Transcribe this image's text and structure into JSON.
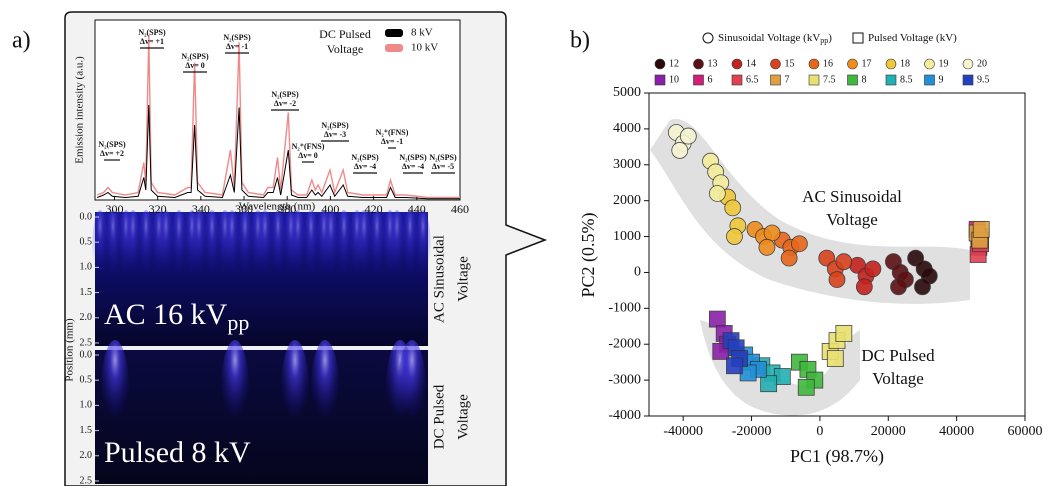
{
  "panel_labels": [
    "a)",
    "b)"
  ],
  "chart_data": [
    {
      "type": "line",
      "xlabel": "Wavelength (nm)",
      "ylabel": "Emission intensity (a.u.)",
      "legend_title": [
        "DC Pulsed",
        "Voltage"
      ],
      "x": [
        292,
        295,
        297,
        299,
        305,
        311,
        313.6,
        314.5,
        315.9,
        317,
        320,
        328,
        333.9,
        335.5,
        337.1,
        338.5,
        342,
        350,
        353.7,
        355.5,
        357.7,
        359,
        362,
        369,
        371,
        373.5,
        375.5,
        377,
        380.5,
        382,
        385,
        389,
        391.4,
        393,
        394.3,
        396,
        399.8,
        402,
        405.9,
        408,
        415,
        420,
        426,
        427.8,
        430,
        435,
        445,
        460
      ],
      "series": [
        {
          "name": "8 kV",
          "color": "#000000",
          "values": [
            1,
            2,
            3,
            1.5,
            1,
            1.5,
            9,
            4,
            38,
            4,
            1.5,
            1,
            3,
            3,
            30,
            4,
            1.5,
            1,
            10,
            3,
            37,
            4,
            1.5,
            1,
            3,
            3,
            9,
            2,
            20,
            2,
            1,
            1,
            4,
            2,
            3,
            1.5,
            6,
            1.5,
            6,
            1.5,
            1,
            1,
            1,
            5,
            1,
            1,
            0.5,
            0.5
          ]
        },
        {
          "name": "10 kV",
          "color": "#f08a8a",
          "values": [
            2,
            3,
            5,
            3,
            2,
            3,
            15,
            7,
            66,
            7,
            3,
            2,
            5,
            5,
            55,
            7,
            3,
            2,
            20,
            5,
            63,
            7,
            3,
            2,
            5,
            5,
            17,
            4,
            35,
            4,
            2,
            2,
            8,
            4,
            6,
            3,
            12,
            3,
            12,
            3,
            2,
            2,
            2,
            8,
            2,
            2,
            1,
            1
          ]
        }
      ],
      "xlim": [
        291,
        460
      ],
      "xticks": [
        300,
        320,
        340,
        360,
        380,
        400,
        420,
        440,
        460
      ],
      "ylim": [
        0,
        72
      ],
      "annotations": [
        {
          "species": "N₂(SPS)",
          "transition": "Δv= +2"
        },
        {
          "species": "N₂(SPS)",
          "transition": "Δv= +1"
        },
        {
          "species": "N₂(SPS)",
          "transition": "Δv= 0"
        },
        {
          "species": "N₂(SPS)",
          "transition": "Δv= -1"
        },
        {
          "species": "N₂(SPS)",
          "transition": "Δv= -2"
        },
        {
          "species": "N₂⁺(FNS)",
          "transition": "Δv= 0"
        },
        {
          "species": "N₂(SPS)",
          "transition": "Δv= -3"
        },
        {
          "species": "N₂(SPS)",
          "transition": "Δv= -4"
        },
        {
          "species": "N₂⁺(FNS)",
          "transition": "Δv= -1"
        },
        {
          "species": "N₂(SPS)",
          "transition": "Δv= -4"
        },
        {
          "species": "N₂(SPS)",
          "transition": "Δv= -5"
        }
      ]
    },
    {
      "type": "image",
      "ylabel": "Position (mm)",
      "ylim": [
        0,
        2.6
      ],
      "yticks": [
        {
          "value": 0,
          "label": "0.0"
        },
        0.5,
        {
          "value": 1,
          "label": "1.0"
        },
        1.5,
        {
          "value": 2,
          "label": "2.0"
        },
        2.5
      ],
      "panels": [
        {
          "label": "AC 16 kV",
          "label_sub": "pp",
          "side_label": [
            "AC Sinusoidal",
            "Voltage"
          ]
        },
        {
          "label": "Pulsed 8 kV",
          "side_label": [
            "DC Pulsed",
            "Voltage"
          ]
        }
      ]
    },
    {
      "type": "scatter",
      "xlabel": "PC1 (98.7%)",
      "ylabel": "PC2 (0.5%)",
      "xlim": [
        -50000,
        60000
      ],
      "xticks": [
        -40000,
        -20000,
        0,
        20000,
        40000,
        60000
      ],
      "ylim": [
        -4000,
        5000
      ],
      "yticks": [
        -4000,
        -3000,
        -2000,
        -1000,
        0,
        1000,
        2000,
        3000,
        4000,
        5000
      ],
      "legend_titles": [
        {
          "text": "Sinusoidal Voltage (kV",
          "sub": "pp",
          "end": ")",
          "marker": "circle"
        },
        {
          "text": "Pulsed Voltage (kV)",
          "marker": "square"
        }
      ],
      "annotations": [
        [
          "AC Sinusoidal",
          "Voltage"
        ],
        [
          "DC Pulsed",
          "Voltage"
        ]
      ],
      "series": [
        {
          "name": "12",
          "marker": "circle",
          "color": "#2a0a0c",
          "x": [
            28000,
            30500,
            32000,
            30000
          ],
          "y": [
            400,
            100,
            -100,
            -400
          ]
        },
        {
          "name": "13",
          "marker": "circle",
          "color": "#5c1014",
          "x": [
            21500,
            23500,
            25000,
            23000
          ],
          "y": [
            300,
            0,
            -200,
            -400
          ]
        },
        {
          "name": "14",
          "marker": "circle",
          "color": "#c4221f",
          "x": [
            11000,
            13500,
            15500,
            13000
          ],
          "y": [
            200,
            -100,
            100,
            -400
          ]
        },
        {
          "name": "15",
          "marker": "circle",
          "color": "#d8421e",
          "x": [
            2000,
            4500,
            7000,
            5000
          ],
          "y": [
            400,
            100,
            300,
            -200
          ]
        },
        {
          "name": "16",
          "marker": "circle",
          "color": "#e8661c",
          "x": [
            -11000,
            -8500,
            -6000,
            -9000
          ],
          "y": [
            900,
            700,
            800,
            400
          ]
        },
        {
          "name": "17",
          "marker": "circle",
          "color": "#ee8c1c",
          "x": [
            -19000,
            -16500,
            -14000,
            -15500
          ],
          "y": [
            1200,
            1000,
            1100,
            700
          ]
        },
        {
          "name": "18",
          "marker": "circle",
          "color": "#f0c83a",
          "x": [
            -27000,
            -25500,
            -24000,
            -25000
          ],
          "y": [
            2100,
            1800,
            1300,
            1000
          ]
        },
        {
          "name": "19",
          "marker": "circle",
          "color": "#f4ee9c",
          "x": [
            -32000,
            -30500,
            -29000,
            -30000
          ],
          "y": [
            3100,
            2800,
            2500,
            2200
          ]
        },
        {
          "name": "20",
          "marker": "circle",
          "color": "#f6f4d2",
          "x": [
            -42000,
            -40000,
            -38500,
            -41000
          ],
          "y": [
            3900,
            3600,
            3800,
            3400
          ]
        },
        {
          "name": "10",
          "marker": "square",
          "color": "#8a20a8",
          "x": [
            -30000,
            -28000,
            -27000,
            -29000
          ],
          "y": [
            -1300,
            -1700,
            -2000,
            -2200
          ]
        },
        {
          "name": "6",
          "marker": "square",
          "color": "#d0207a",
          "x": [
            46000,
            47000,
            46500
          ],
          "y": [
            1200,
            900,
            700
          ]
        },
        {
          "name": "6.5",
          "marker": "square",
          "color": "#e04050",
          "x": [
            46300,
            47000,
            46600
          ],
          "y": [
            500,
            800,
            1000
          ]
        },
        {
          "name": "7",
          "marker": "square",
          "color": "#e0a040",
          "x": [
            46000,
            46800,
            47200
          ],
          "y": [
            1100,
            900,
            1200
          ]
        },
        {
          "name": "7.5",
          "marker": "square",
          "color": "#e8e070",
          "x": [
            3000,
            5000,
            7000,
            4500
          ],
          "y": [
            -2200,
            -1900,
            -1700,
            -2400
          ]
        },
        {
          "name": "8",
          "marker": "square",
          "color": "#40b83c",
          "x": [
            -6000,
            -3500,
            -1500,
            -4000
          ],
          "y": [
            -2500,
            -2700,
            -3000,
            -3200
          ]
        },
        {
          "name": "8.5",
          "marker": "square",
          "color": "#22b0b0",
          "x": [
            -17000,
            -14000,
            -11000,
            -15000
          ],
          "y": [
            -2600,
            -2800,
            -2900,
            -3100
          ]
        },
        {
          "name": "9",
          "marker": "square",
          "color": "#2290d8",
          "x": [
            -22000,
            -20000,
            -18000,
            -21000
          ],
          "y": [
            -2300,
            -2500,
            -2700,
            -2800
          ]
        },
        {
          "name": "9.5",
          "marker": "square",
          "color": "#2440c0",
          "x": [
            -26000,
            -24500,
            -23500,
            -25000
          ],
          "y": [
            -1900,
            -2100,
            -2400,
            -2600
          ]
        }
      ]
    }
  ]
}
